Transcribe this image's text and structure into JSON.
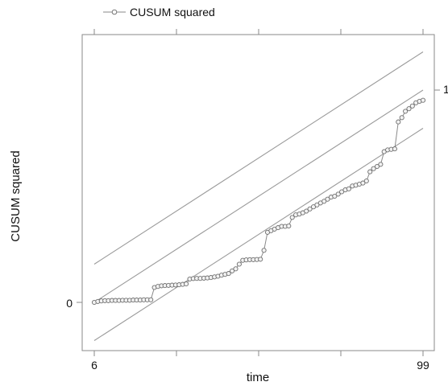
{
  "chart_data": {
    "type": "line",
    "title": "",
    "xlabel": "time",
    "ylabel": "CUSUM squared",
    "xlim": [
      6,
      99
    ],
    "ylim": [
      0,
      1
    ],
    "x_ticks": [
      6,
      99
    ],
    "x_tick_labels": [
      "6",
      "99"
    ],
    "y_ticks": [
      0,
      1
    ],
    "y_tick_labels": [
      "0",
      "1"
    ],
    "grid": false,
    "legend": {
      "position": "top-left",
      "entries": [
        "CUSUM squared"
      ]
    },
    "colors": {
      "series": "#8a8a8a",
      "bounds": "#9a9a9a",
      "axis": "#8a8a8a"
    },
    "reference_lines": [
      {
        "name": "expected",
        "x": [
          6,
          99
        ],
        "y": [
          0,
          1
        ]
      },
      {
        "name": "upper bound",
        "x": [
          6,
          99
        ],
        "y": [
          0.18,
          1.18
        ]
      },
      {
        "name": "lower bound",
        "x": [
          6,
          99
        ],
        "y": [
          -0.18,
          0.82
        ]
      }
    ],
    "series": [
      {
        "name": "CUSUM squared",
        "marker": "circle",
        "x": [
          6,
          7,
          8,
          9,
          10,
          11,
          12,
          13,
          14,
          15,
          16,
          17,
          18,
          19,
          20,
          21,
          22,
          23,
          24,
          25,
          26,
          27,
          28,
          29,
          30,
          31,
          32,
          33,
          34,
          35,
          36,
          37,
          38,
          39,
          40,
          41,
          42,
          43,
          44,
          45,
          46,
          47,
          48,
          49,
          50,
          51,
          52,
          53,
          54,
          55,
          56,
          57,
          58,
          59,
          60,
          61,
          62,
          63,
          64,
          65,
          66,
          67,
          68,
          69,
          70,
          71,
          72,
          73,
          74,
          75,
          76,
          77,
          78,
          79,
          80,
          81,
          82,
          83,
          84,
          85,
          86,
          87,
          88,
          89,
          90,
          91,
          92,
          93,
          94,
          95,
          96,
          97,
          98,
          99
        ],
        "values": [
          0.0,
          0.004,
          0.007,
          0.008,
          0.008,
          0.009,
          0.009,
          0.009,
          0.01,
          0.01,
          0.01,
          0.011,
          0.011,
          0.011,
          0.012,
          0.012,
          0.012,
          0.07,
          0.075,
          0.078,
          0.079,
          0.08,
          0.081,
          0.082,
          0.083,
          0.085,
          0.087,
          0.11,
          0.112,
          0.113,
          0.113,
          0.114,
          0.115,
          0.117,
          0.12,
          0.123,
          0.128,
          0.132,
          0.136,
          0.148,
          0.158,
          0.18,
          0.198,
          0.2,
          0.201,
          0.201,
          0.202,
          0.203,
          0.245,
          0.33,
          0.338,
          0.345,
          0.352,
          0.358,
          0.358,
          0.36,
          0.4,
          0.412,
          0.416,
          0.422,
          0.43,
          0.44,
          0.45,
          0.459,
          0.468,
          0.476,
          0.486,
          0.496,
          0.5,
          0.51,
          0.521,
          0.53,
          0.535,
          0.548,
          0.552,
          0.557,
          0.562,
          0.572,
          0.615,
          0.63,
          0.64,
          0.65,
          0.71,
          0.718,
          0.721,
          0.723,
          0.85,
          0.87,
          0.9,
          0.912,
          0.925,
          0.94,
          0.947,
          0.952
        ]
      }
    ]
  }
}
